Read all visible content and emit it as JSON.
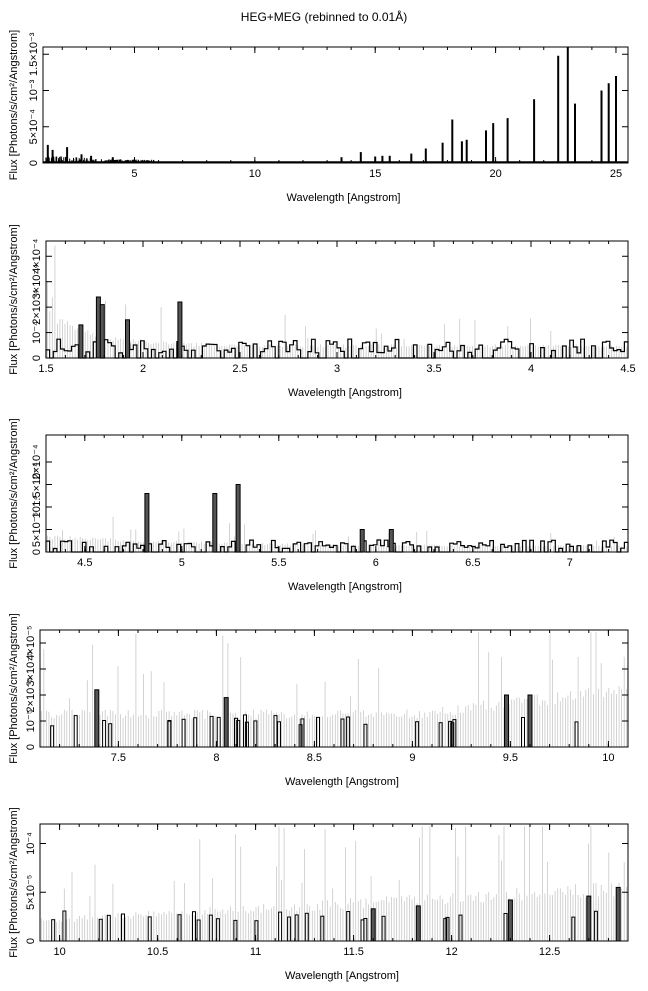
{
  "title": "HEG+MEG (rebinned to 0.01Å)",
  "chart_data": [
    {
      "type": "line",
      "xlabel": "Wavelength [Angstrom]",
      "ylabel": "Flux [Photons/s/cm²/Angstrom]",
      "xlim": [
        1.2,
        25.5
      ],
      "ylim": [
        0,
        0.0016
      ],
      "xticks": [
        5,
        10,
        15,
        20,
        25
      ],
      "xtick_labels": [
        "5",
        "10",
        "15",
        "20",
        "25"
      ],
      "yticks": [
        0,
        0.0005,
        0.001,
        0.0015
      ],
      "ytick_labels": [
        "0",
        "5×10⁻⁴",
        "10⁻³",
        "1.5×10⁻³"
      ],
      "style": "overview",
      "lines": [
        [
          1.4,
          0.00025
        ],
        [
          1.6,
          0.00018
        ],
        [
          2.2,
          0.00022
        ],
        [
          2.8,
          0.00012
        ],
        [
          3.2,
          0.0001
        ],
        [
          4.1,
          8e-05
        ],
        [
          13.6,
          8e-05
        ],
        [
          14.4,
          0.00015
        ],
        [
          15.0,
          9e-05
        ],
        [
          15.3,
          0.0001
        ],
        [
          15.6,
          0.0001
        ],
        [
          16.5,
          0.00013
        ],
        [
          17.1,
          0.0002
        ],
        [
          17.8,
          0.00028
        ],
        [
          18.2,
          0.0006
        ],
        [
          18.6,
          0.0003
        ],
        [
          18.8,
          0.00032
        ],
        [
          19.6,
          0.00045
        ],
        [
          19.9,
          0.00055
        ],
        [
          20.5,
          0.00062
        ],
        [
          21.6,
          0.00088
        ],
        [
          22.6,
          0.00148
        ],
        [
          23.0,
          0.0016
        ],
        [
          23.3,
          0.00082
        ],
        [
          24.4,
          0.001
        ],
        [
          24.7,
          0.0011
        ],
        [
          25.0,
          0.0012
        ]
      ]
    },
    {
      "type": "line",
      "xlabel": "Wavelength [Angstrom]",
      "ylabel": "Flux [Photons/s/cm²/Angstrom]",
      "xlim": [
        1.5,
        4.5
      ],
      "ylim": [
        0,
        0.00046
      ],
      "xticks": [
        1.5,
        2,
        2.5,
        3,
        3.5,
        4,
        4.5
      ],
      "xtick_labels": [
        "1.5",
        "2",
        "2.5",
        "3",
        "3.5",
        "4",
        "4.5"
      ],
      "yticks": [
        0,
        0.0001,
        0.0002,
        0.0003,
        0.0004
      ],
      "ytick_labels": [
        "0",
        "10⁻⁴",
        "2×10⁻⁴",
        "3×10⁻⁴",
        "4×10⁻⁴"
      ],
      "style": "hist",
      "lines": [
        [
          1.68,
          0.00013
        ],
        [
          1.77,
          0.00024
        ],
        [
          1.79,
          0.00021
        ],
        [
          1.92,
          0.00015
        ],
        [
          2.19,
          0.00022
        ]
      ]
    },
    {
      "type": "line",
      "xlabel": "Wavelength [Angstrom]",
      "ylabel": "Flux [Photons/s/cm²/Angstrom]",
      "xlim": [
        4.3,
        7.3
      ],
      "ylim": [
        0,
        0.00026
      ],
      "xticks": [
        4.5,
        5,
        5.5,
        6,
        6.5,
        7
      ],
      "xtick_labels": [
        "4.5",
        "5",
        "5.5",
        "6",
        "6.5",
        "7"
      ],
      "yticks": [
        0,
        5e-05,
        0.0001,
        0.00015,
        0.0002
      ],
      "ytick_labels": [
        "0",
        "5×10⁻⁵",
        "10⁻⁴",
        "1.5×10⁻⁴",
        "2×10⁻⁴"
      ],
      "style": "hist",
      "lines": [
        [
          4.82,
          0.00013
        ],
        [
          5.17,
          0.00013
        ],
        [
          5.29,
          0.00015
        ],
        [
          5.93,
          5e-05
        ],
        [
          6.08,
          5e-05
        ]
      ]
    },
    {
      "type": "line",
      "xlabel": "Wavelength [Angstrom]",
      "ylabel": "Flux [Photons/s/cm²/Angstrom]",
      "xlim": [
        7.1,
        10.1
      ],
      "ylim": [
        0,
        4.5e-05
      ],
      "xticks": [
        7.5,
        8,
        8.5,
        9,
        9.5,
        10
      ],
      "xtick_labels": [
        "7.5",
        "8",
        "8.5",
        "9",
        "9.5",
        "10"
      ],
      "yticks": [
        0,
        1e-05,
        2e-05,
        3e-05,
        4e-05
      ],
      "ytick_labels": [
        "0",
        "10⁻⁵",
        "2×10⁻⁵",
        "3×10⁻⁵",
        "4×10⁻⁵"
      ],
      "style": "sparse",
      "lines": [
        [
          7.39,
          2.2e-05
        ],
        [
          8.05,
          1.9e-05
        ],
        [
          9.48,
          2e-05
        ],
        [
          9.6,
          2e-05
        ]
      ]
    },
    {
      "type": "line",
      "xlabel": "Wavelength [Angstrom]",
      "ylabel": "Flux [Photons/s/cm²/Angstrom]",
      "xlim": [
        9.9,
        12.9
      ],
      "ylim": [
        0,
        0.00012
      ],
      "xticks": [
        10,
        10.5,
        11,
        11.5,
        12,
        12.5
      ],
      "xtick_labels": [
        "10",
        "10.5",
        "11",
        "11.5",
        "12",
        "12.5"
      ],
      "yticks": [
        0,
        5e-05,
        0.0001
      ],
      "ytick_labels": [
        "0",
        "5×10⁻⁵",
        "10⁻⁴"
      ],
      "style": "sparse",
      "lines": [
        [
          11.6,
          3.3e-05
        ],
        [
          11.83,
          3.6e-05
        ],
        [
          12.3,
          4.2e-05
        ],
        [
          12.7,
          4.6e-05
        ],
        [
          12.85,
          5.5e-05
        ]
      ]
    }
  ]
}
